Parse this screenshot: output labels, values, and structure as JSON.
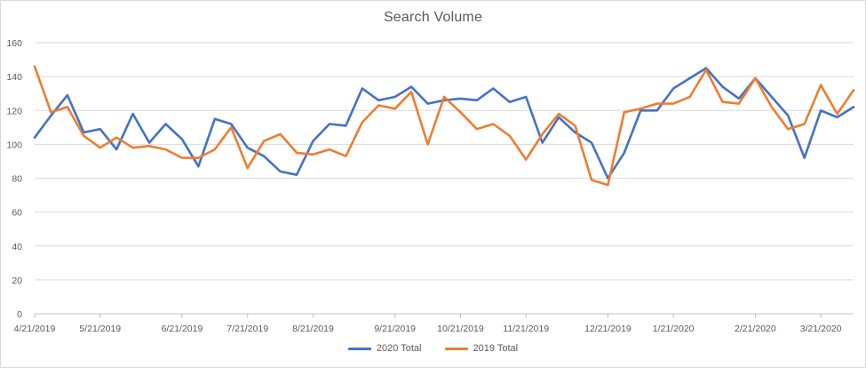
{
  "chart_data": {
    "type": "line",
    "title": "Search Volume",
    "xlabel": "",
    "ylabel": "",
    "ylim": [
      0,
      160
    ],
    "yticks": [
      0,
      20,
      40,
      60,
      80,
      100,
      120,
      140,
      160
    ],
    "x_tick_labels": [
      "4/21/2019",
      "5/21/2019",
      "6/21/2019",
      "7/21/2019",
      "8/21/2019",
      "9/21/2019",
      "10/21/2019",
      "11/21/2019",
      "12/21/2019",
      "1/21/2020",
      "2/21/2020",
      "3/21/2020"
    ],
    "x_tick_index": [
      0,
      4,
      9,
      13,
      17,
      22,
      26,
      30,
      35,
      39,
      44,
      48
    ],
    "grid": true,
    "legend_position": "bottom",
    "series": [
      {
        "name": "2020 Total",
        "color": "#4472c4",
        "values": [
          104,
          117,
          129,
          107,
          109,
          97,
          118,
          101,
          112,
          103,
          87,
          115,
          112,
          98,
          93,
          84,
          82,
          102,
          112,
          111,
          133,
          126,
          128,
          134,
          124,
          126,
          127,
          126,
          133,
          125,
          128,
          101,
          116,
          107,
          101,
          80,
          95,
          120,
          120,
          133,
          139,
          145,
          134,
          127,
          139,
          128,
          117,
          92,
          120,
          116,
          122
        ]
      },
      {
        "name": "2019 Total",
        "color": "#ed7d31",
        "values": [
          146,
          119,
          122,
          105,
          98,
          104,
          98,
          99,
          97,
          92,
          92,
          97,
          110,
          86,
          102,
          106,
          95,
          94,
          97,
          93,
          113,
          123,
          121,
          131,
          100,
          128,
          119,
          109,
          112,
          105,
          91,
          106,
          118,
          111,
          79,
          76,
          119,
          121,
          124,
          124,
          128,
          144,
          125,
          124,
          139,
          122,
          109,
          112,
          135,
          118,
          132
        ]
      }
    ]
  }
}
